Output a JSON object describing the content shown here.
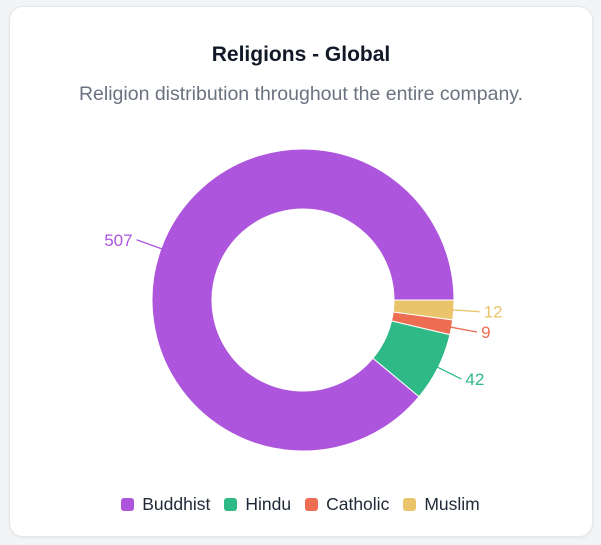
{
  "card": {
    "title": "Religions - Global",
    "subtitle": "Religion distribution throughout the entire company."
  },
  "chart_data": {
    "type": "pie",
    "donut": true,
    "start": "east (3 o'clock), counter-clockwise",
    "categories": [
      "Buddhist",
      "Hindu",
      "Catholic",
      "Muslim"
    ],
    "values": [
      507,
      42,
      9,
      12
    ],
    "colors": [
      "#ad55dc",
      "#2fb986",
      "#ec6d52",
      "#e9c46a"
    ],
    "data_labels": [
      "507",
      "42",
      "9",
      "12"
    ],
    "legend_position": "bottom-center"
  }
}
